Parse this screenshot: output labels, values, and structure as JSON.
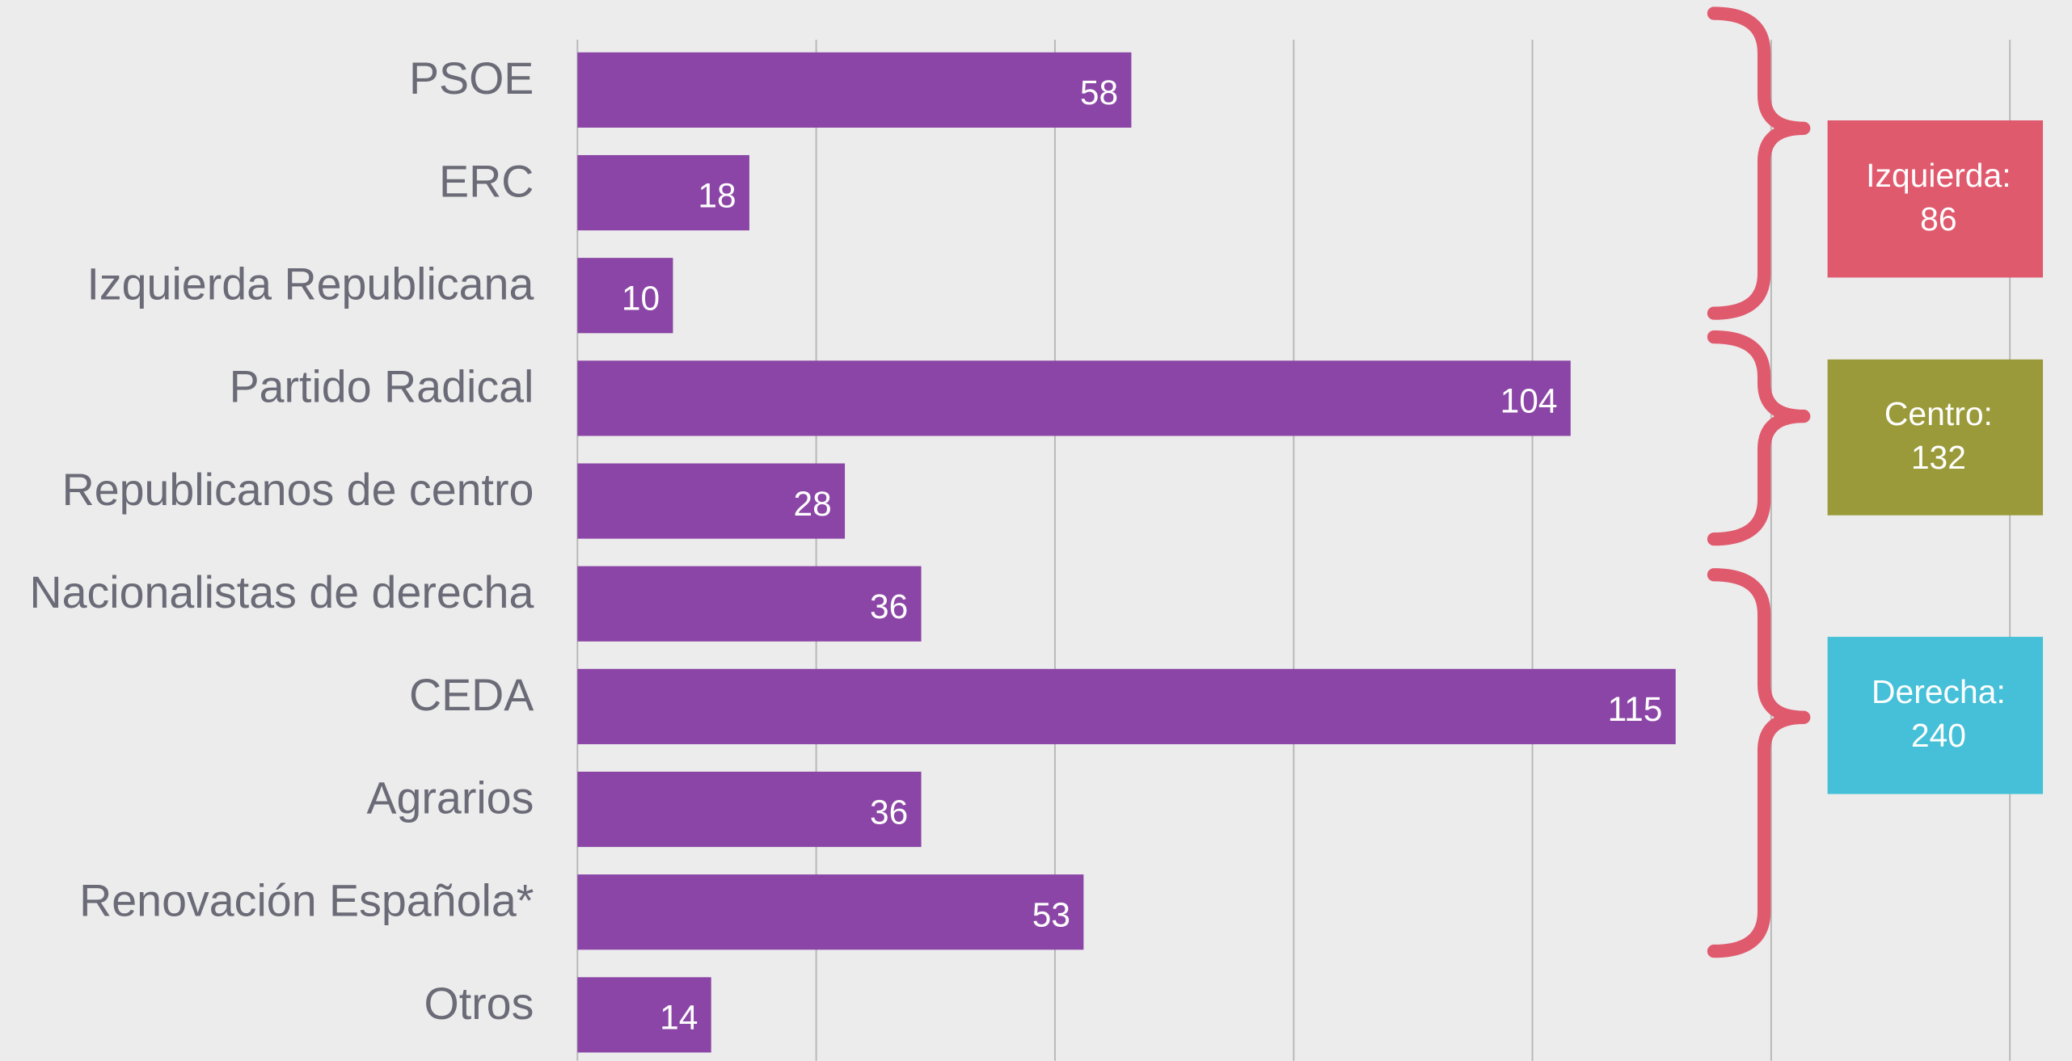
{
  "chart_data": {
    "type": "barh",
    "categories": [
      "PSOE",
      "ERC",
      "Izquierda Republicana",
      "Partido Radical",
      "Republicanos de  centro",
      "Nacionalistas de derecha",
      "CEDA",
      "Agrarios",
      "Renovación Española*",
      "Otros"
    ],
    "values": [
      58,
      18,
      10,
      104,
      28,
      36,
      115,
      36,
      53,
      14
    ],
    "color": "#8b45a6",
    "xlim": [
      0,
      150
    ],
    "xticks": [
      0,
      25,
      50,
      75,
      100,
      125,
      150
    ],
    "grid": true,
    "tick_labels": false,
    "groups": [
      {
        "label": "Izquierda:",
        "total": 86,
        "color": "#e05a6e"
      },
      {
        "label": "Centro:",
        "total": 132,
        "color": "#9a9a3a"
      },
      {
        "label": "Derecha:",
        "total": 240,
        "color": "#45c0d8"
      }
    ],
    "brace_color": "#e05a6e"
  }
}
